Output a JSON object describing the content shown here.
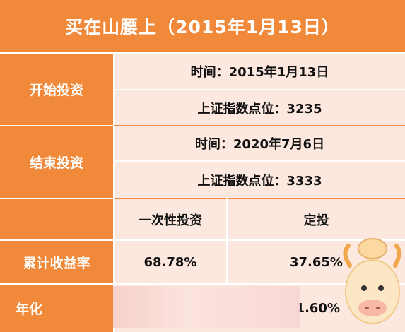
{
  "title": "买在山腰上（2015年1月13日）",
  "rows": {
    "start_label": "开始投资",
    "start_time": "时间：2015年1月13日",
    "start_index": "上证指数点位：3235",
    "end_label": "结束投资",
    "end_time": "时间：2020年7月6日",
    "end_index": "上证指数点位：3333",
    "col_lump": "一次性投资",
    "col_dca": "定投",
    "return_label": "累计收益率",
    "return_lump": "68.78%",
    "return_dca": "37.65%",
    "annual_label": "年化",
    "annual_dca": "1.60%"
  },
  "colors": {
    "orange": "#f08a3a",
    "pink": "#fde8df"
  }
}
